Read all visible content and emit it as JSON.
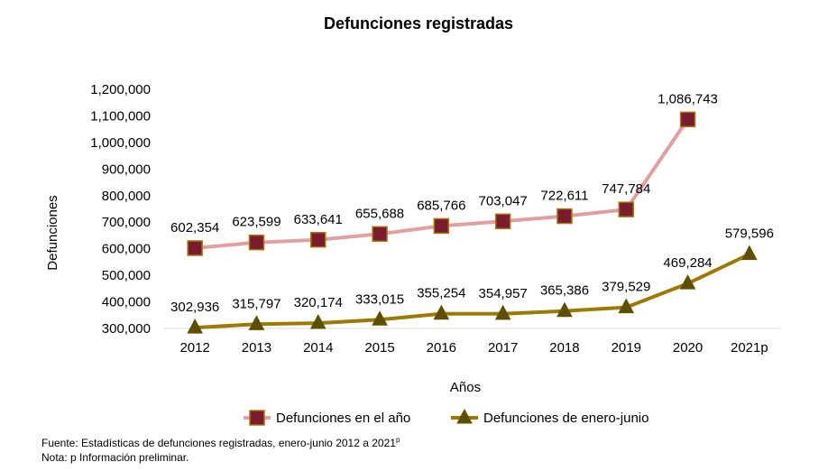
{
  "chart_data": {
    "type": "line",
    "title": "Defunciones registradas",
    "xlabel": "Años",
    "ylabel": "Defunciones",
    "categories": [
      "2012",
      "2013",
      "2014",
      "2015",
      "2016",
      "2017",
      "2018",
      "2019",
      "2020",
      "2021p"
    ],
    "ylim": [
      300000,
      1200000
    ],
    "yticks": [
      "300,000",
      "400,000",
      "500,000",
      "600,000",
      "700,000",
      "800,000",
      "900,000",
      "1,000,000",
      "1,100,000",
      "1,200,000"
    ],
    "grid": false,
    "legend_position": "bottom",
    "series": [
      {
        "name": "Defunciones en el año",
        "values": [
          602354,
          623599,
          633641,
          655688,
          685766,
          703047,
          722611,
          747784,
          1086743,
          null
        ],
        "labels": [
          "602,354",
          "623,599",
          "633,641",
          "655,688",
          "685,766",
          "703,047",
          "722,611",
          "747,784",
          "1,086,743",
          ""
        ],
        "line_color": "#e0a0a3",
        "marker": "square",
        "marker_fill": "#7a1c2e",
        "marker_stroke": "#a5761a"
      },
      {
        "name": "Defunciones de enero-junio",
        "values": [
          302936,
          315797,
          320174,
          333015,
          355254,
          354957,
          365386,
          379529,
          469284,
          579596
        ],
        "labels": [
          "302,936",
          "315,797",
          "320,174",
          "333,015",
          "355,254",
          "354,957",
          "365,386",
          "379,529",
          "469,284",
          "579,596"
        ],
        "line_color": "#9a7a00",
        "marker": "triangle",
        "marker_fill": "#5e4f00",
        "marker_stroke": "#5e4f00"
      }
    ]
  },
  "notes": {
    "source": "Fuente: Estadísticas de defunciones registradas, enero-junio 2012 a 2021",
    "source_sup": "p",
    "note": "Nota: p Información preliminar."
  }
}
